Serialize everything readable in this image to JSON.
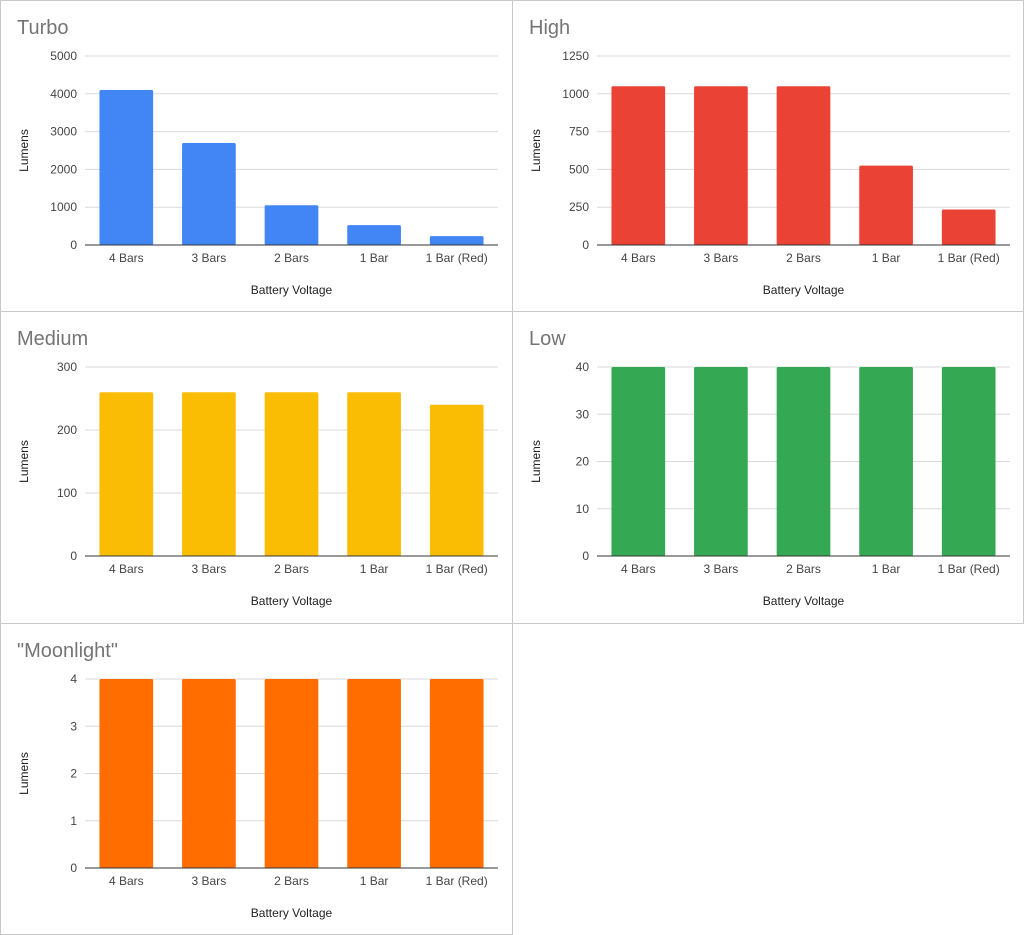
{
  "chart_data": [
    {
      "type": "bar",
      "title": "Turbo",
      "xlabel": "Battery Voltage",
      "ylabel": "Lumens",
      "categories": [
        "4 Bars",
        "3 Bars",
        "2 Bars",
        "1 Bar",
        "1 Bar (Red)"
      ],
      "values": [
        4100,
        2700,
        1050,
        525,
        235
      ],
      "yticks": [
        0,
        1000,
        2000,
        3000,
        4000,
        5000
      ],
      "ylim": [
        0,
        5000
      ],
      "color": "#4285f4",
      "grid": true,
      "legend": "none"
    },
    {
      "type": "bar",
      "title": "High",
      "xlabel": "Battery Voltage",
      "ylabel": "Lumens",
      "categories": [
        "4 Bars",
        "3 Bars",
        "2 Bars",
        "1 Bar",
        "1 Bar (Red)"
      ],
      "values": [
        1050,
        1050,
        1050,
        525,
        235
      ],
      "yticks": [
        0,
        250,
        500,
        750,
        1000,
        1250
      ],
      "ylim": [
        0,
        1250
      ],
      "color": "#ea4335",
      "grid": true,
      "legend": "none"
    },
    {
      "type": "bar",
      "title": "Medium",
      "xlabel": "Battery Voltage",
      "ylabel": "Lumens",
      "categories": [
        "4 Bars",
        "3 Bars",
        "2 Bars",
        "1 Bar",
        "1 Bar (Red)"
      ],
      "values": [
        260,
        260,
        260,
        260,
        240
      ],
      "yticks": [
        0,
        100,
        200,
        300
      ],
      "ylim": [
        0,
        300
      ],
      "color": "#fbbc04",
      "grid": true,
      "legend": "none"
    },
    {
      "type": "bar",
      "title": "Low",
      "xlabel": "Battery Voltage",
      "ylabel": "Lumens",
      "categories": [
        "4 Bars",
        "3 Bars",
        "2 Bars",
        "1 Bar",
        "1 Bar (Red)"
      ],
      "values": [
        40,
        40,
        40,
        40,
        40
      ],
      "yticks": [
        0,
        10,
        20,
        30,
        40
      ],
      "ylim": [
        0,
        40
      ],
      "color": "#34a853",
      "grid": true,
      "legend": "none"
    },
    {
      "type": "bar",
      "title": "\"Moonlight\"",
      "xlabel": "Battery Voltage",
      "ylabel": "Lumens",
      "categories": [
        "4 Bars",
        "3 Bars",
        "2 Bars",
        "1 Bar",
        "1 Bar (Red)"
      ],
      "values": [
        4,
        4,
        4,
        4,
        4
      ],
      "yticks": [
        0,
        1,
        2,
        3,
        4
      ],
      "ylim": [
        0,
        4
      ],
      "color": "#ff6d01",
      "grid": true,
      "legend": "none"
    }
  ]
}
